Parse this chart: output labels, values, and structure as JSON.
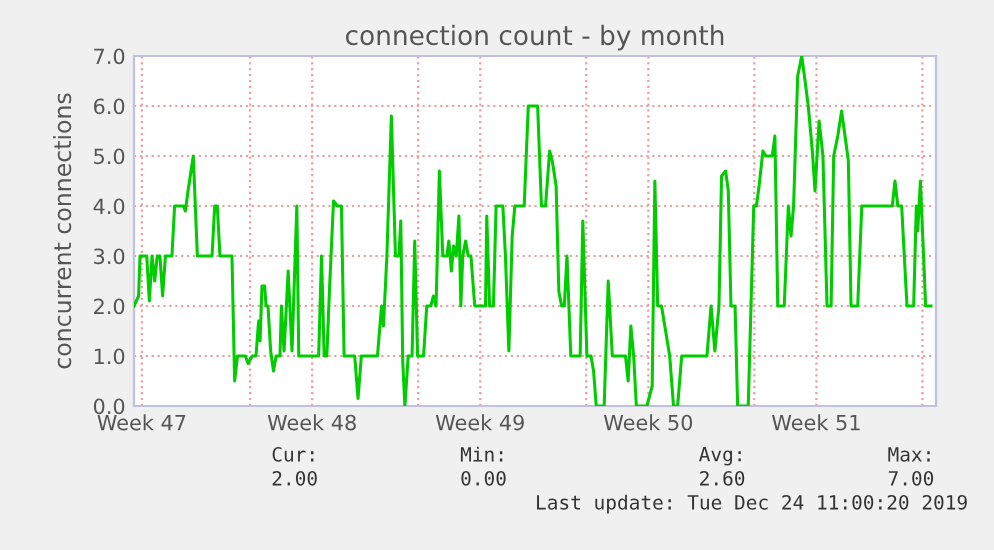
{
  "chart_data": {
    "type": "line",
    "title": "connection count - by month",
    "ylabel": "concurrent connections",
    "x": [
      "2019-11-20T04:00",
      "2019-11-20T08:35",
      "2019-11-20T10:00",
      "2019-11-20T16:45",
      "2019-11-20T19:20",
      "2019-11-20T22:00",
      "2019-11-21T00:40",
      "2019-11-21T03:15",
      "2019-11-21T05:55",
      "2019-11-21T08:35",
      "2019-11-21T11:25",
      "2019-11-21T17:55",
      "2019-11-21T20:35",
      "2019-11-22T05:25",
      "2019-11-22T07:20",
      "2019-11-22T10:00",
      "2019-11-22T15:15",
      "2019-11-22T19:20",
      "2019-11-23T10:00",
      "2019-11-23T12:40",
      "2019-11-23T15:15",
      "2019-11-23T17:55",
      "2019-11-24T05:55",
      "2019-11-24T08:35",
      "2019-11-24T11:25",
      "2019-11-24T19:20",
      "2019-11-24T22:00",
      "2019-11-25T02:05",
      "2019-11-25T05:55",
      "2019-11-25T08:35",
      "2019-11-25T10:00",
      "2019-11-25T11:55",
      "2019-11-25T14:35",
      "2019-11-25T16:00",
      "2019-11-25T17:55",
      "2019-11-25T20:35",
      "2019-11-25T23:25",
      "2019-11-26T02:05",
      "2019-11-26T05:55",
      "2019-11-26T07:20",
      "2019-11-26T10:00",
      "2019-11-26T14:05",
      "2019-11-26T17:55",
      "2019-11-26T22:45",
      "2019-11-27T00:40",
      "2019-11-27T20:35",
      "2019-11-27T23:25",
      "2019-11-28T02:05",
      "2019-11-28T04:45",
      "2019-11-28T07:20",
      "2019-11-28T11:25",
      "2019-11-28T15:15",
      "2019-11-28T19:20",
      "2019-11-28T22:00",
      "2019-11-29T08:35",
      "2019-11-29T11:55",
      "2019-11-29T15:15",
      "2019-11-30T07:20",
      "2019-11-30T11:25",
      "2019-11-30T13:20",
      "2019-11-30T16:45",
      "2019-11-30T21:15",
      "2019-12-01T01:20",
      "2019-12-01T04:45",
      "2019-12-01T06:40",
      "2019-12-01T08:35",
      "2019-12-01T10:45",
      "2019-12-01T14:05",
      "2019-12-01T17:55",
      "2019-12-01T20:35",
      "2019-12-01T23:25",
      "2019-12-02T05:25",
      "2019-12-02T08:35",
      "2019-12-02T12:40",
      "2019-12-02T15:15",
      "2019-12-02T17:55",
      "2019-12-02T21:15",
      "2019-12-03T00:40",
      "2019-12-03T04:45",
      "2019-12-03T06:40",
      "2019-12-03T09:15",
      "2019-12-03T11:25",
      "2019-12-03T14:05",
      "2019-12-03T16:45",
      "2019-12-03T18:40",
      "2019-12-03T20:35",
      "2019-12-03T23:25",
      "2019-12-04T02:05",
      "2019-12-04T04:45",
      "2019-12-04T08:35",
      "2019-12-04T14:05",
      "2019-12-04T19:20",
      "2019-12-04T20:35",
      "2019-12-04T23:25",
      "2019-12-05T03:15",
      "2019-12-05T05:55",
      "2019-12-05T12:40",
      "2019-12-05T15:15",
      "2019-12-05T18:40",
      "2019-12-05T22:00",
      "2019-12-06T00:40",
      "2019-12-06T10:00",
      "2019-12-06T14:05",
      "2019-12-06T23:25",
      "2019-12-07T03:15",
      "2019-12-07T07:20",
      "2019-12-07T11:25",
      "2019-12-07T14:05",
      "2019-12-07T17:55",
      "2019-12-07T20:35",
      "2019-12-07T23:25",
      "2019-12-08T02:05",
      "2019-12-08T04:45",
      "2019-12-08T08:35",
      "2019-12-08T17:55",
      "2019-12-08T20:35",
      "2019-12-09T00:40",
      "2019-12-09T04:45",
      "2019-12-09T07:20",
      "2019-12-09T10:00",
      "2019-12-09T17:55",
      "2019-12-09T22:00",
      "2019-12-10T02:05",
      "2019-12-10T15:15",
      "2019-12-10T17:55",
      "2019-12-10T20:35",
      "2019-12-10T23:25",
      "2019-12-11T02:05",
      "2019-12-11T12:40",
      "2019-12-11T17:55",
      "2019-12-11T20:35",
      "2019-12-11T23:25",
      "2019-12-12T03:15",
      "2019-12-12T07:20",
      "2019-12-12T11:25",
      "2019-12-12T15:15",
      "2019-12-12T19:20",
      "2019-12-12T23:25",
      "2019-12-14T00:40",
      "2019-12-14T04:45",
      "2019-12-14T08:35",
      "2019-12-14T12:40",
      "2019-12-14T15:15",
      "2019-12-14T19:20",
      "2019-12-14T22:00",
      "2019-12-15T00:40",
      "2019-12-15T04:45",
      "2019-12-15T07:20",
      "2019-12-15T17:55",
      "2019-12-15T23:25",
      "2019-12-16T02:05",
      "2019-12-16T04:45",
      "2019-12-16T08:35",
      "2019-12-16T11:25",
      "2019-12-16T17:55",
      "2019-12-16T20:35",
      "2019-12-16T23:25",
      "2019-12-17T05:55",
      "2019-12-17T10:00",
      "2019-12-17T12:40",
      "2019-12-17T15:15",
      "2019-12-17T19:20",
      "2019-12-17T23:25",
      "2019-12-18T02:05",
      "2019-12-18T05:55",
      "2019-12-18T10:00",
      "2019-12-18T12:40",
      "2019-12-18T16:45",
      "2019-12-18T20:35",
      "2019-12-19T00:40",
      "2019-12-19T04:45",
      "2019-12-19T07:20",
      "2019-12-19T11:25",
      "2019-12-19T15:15",
      "2019-12-19T19:20",
      "2019-12-19T22:00",
      "2019-12-20T00:40",
      "2019-12-20T07:20",
      "2019-12-20T11:25",
      "2019-12-21T17:55",
      "2019-12-21T20:35",
      "2019-12-21T23:25",
      "2019-12-22T03:15",
      "2019-12-22T08:35",
      "2019-12-22T15:15",
      "2019-12-22T17:55",
      "2019-12-22T19:20",
      "2019-12-22T22:00",
      "2019-12-23T03:15",
      "2019-12-23T08:35"
    ],
    "series": [
      {
        "color": "#00cc00",
        "values": [
          2,
          2.2,
          3,
          3,
          2.1,
          3,
          2.5,
          3,
          3,
          2.2,
          3,
          3,
          4,
          4,
          3.9,
          4.3,
          5,
          3,
          3,
          4,
          4,
          3,
          3,
          0.5,
          1,
          1,
          0.85,
          1,
          1,
          1.7,
          1.3,
          2.4,
          2.4,
          2,
          2,
          1.1,
          0.7,
          1,
          1,
          2,
          1.1,
          2.7,
          1.1,
          4,
          1,
          1,
          3,
          1,
          1,
          2.3,
          4.1,
          4,
          4,
          1,
          1,
          0.15,
          1,
          1,
          2,
          1.6,
          3,
          5.8,
          3,
          3,
          3.7,
          0.9,
          0,
          1,
          1,
          3.3,
          1,
          1,
          2,
          2,
          2.2,
          2,
          4.7,
          3,
          3,
          3.3,
          2.7,
          3.2,
          3,
          3.8,
          2,
          3,
          3.3,
          3,
          3,
          2,
          2,
          2,
          3.8,
          2,
          2,
          4,
          4,
          3,
          1.1,
          3.4,
          4,
          4,
          6,
          6,
          4,
          4,
          5.1,
          4.9,
          4.4,
          2.3,
          2,
          2,
          3,
          1,
          1,
          3.7,
          1,
          1,
          0.7,
          0,
          0,
          2.5,
          1,
          1,
          0.5,
          1.6,
          1,
          0,
          0,
          0.4,
          4.5,
          2,
          2,
          1.5,
          1,
          0,
          0,
          1,
          1,
          2,
          1.1,
          2,
          4.6,
          4.7,
          4.3,
          2,
          2,
          0,
          0,
          4,
          4,
          4.4,
          5.1,
          5,
          5,
          5.4,
          2,
          2,
          4,
          3.4,
          4,
          6.6,
          7,
          6.6,
          6,
          5.1,
          4.3,
          5.7,
          5,
          2,
          2,
          5,
          5.4,
          5.9,
          5.3,
          4.9,
          2,
          2,
          4,
          4,
          4.5,
          4,
          4,
          2,
          2,
          4,
          3.5,
          4.5,
          2,
          2
        ]
      }
    ],
    "xlim": [
      "2019-11-20T04:00",
      "2019-12-23T13:35"
    ],
    "xticks": [
      {
        "value": "2019-11-20T11:55",
        "label": "Week 47"
      },
      {
        "value": "2019-11-25T00:00",
        "label": null
      },
      {
        "value": "2019-11-27T14:05",
        "label": "Week 48"
      },
      {
        "value": "2019-12-02T00:00",
        "label": null
      },
      {
        "value": "2019-12-04T14:05",
        "label": "Week 49"
      },
      {
        "value": "2019-12-09T00:00",
        "label": null
      },
      {
        "value": "2019-12-11T14:05",
        "label": "Week 50"
      },
      {
        "value": "2019-12-16T00:00",
        "label": null
      },
      {
        "value": "2019-12-18T14:05",
        "label": "Week 51"
      },
      {
        "value": "2019-12-23T00:00",
        "label": null
      }
    ],
    "ylim": [
      0,
      7
    ],
    "yticks": [
      {
        "value": 0,
        "label": "0.0"
      },
      {
        "value": 1,
        "label": "1.0"
      },
      {
        "value": 2,
        "label": "2.0"
      },
      {
        "value": 3,
        "label": "3.0"
      },
      {
        "value": 4,
        "label": "4.0"
      },
      {
        "value": 5,
        "label": "5.0"
      },
      {
        "value": 6,
        "label": "6.0"
      },
      {
        "value": 7,
        "label": "7.0"
      }
    ],
    "grid": true,
    "marker": "none",
    "line_style": "solid",
    "annotations": [
      "Cur:",
      "Min:",
      "Avg:",
      "Max:",
      "2.00",
      "0.00",
      "2.60",
      "7.00",
      "Last update: Tue Dec 24 11:00:20 2019"
    ]
  }
}
